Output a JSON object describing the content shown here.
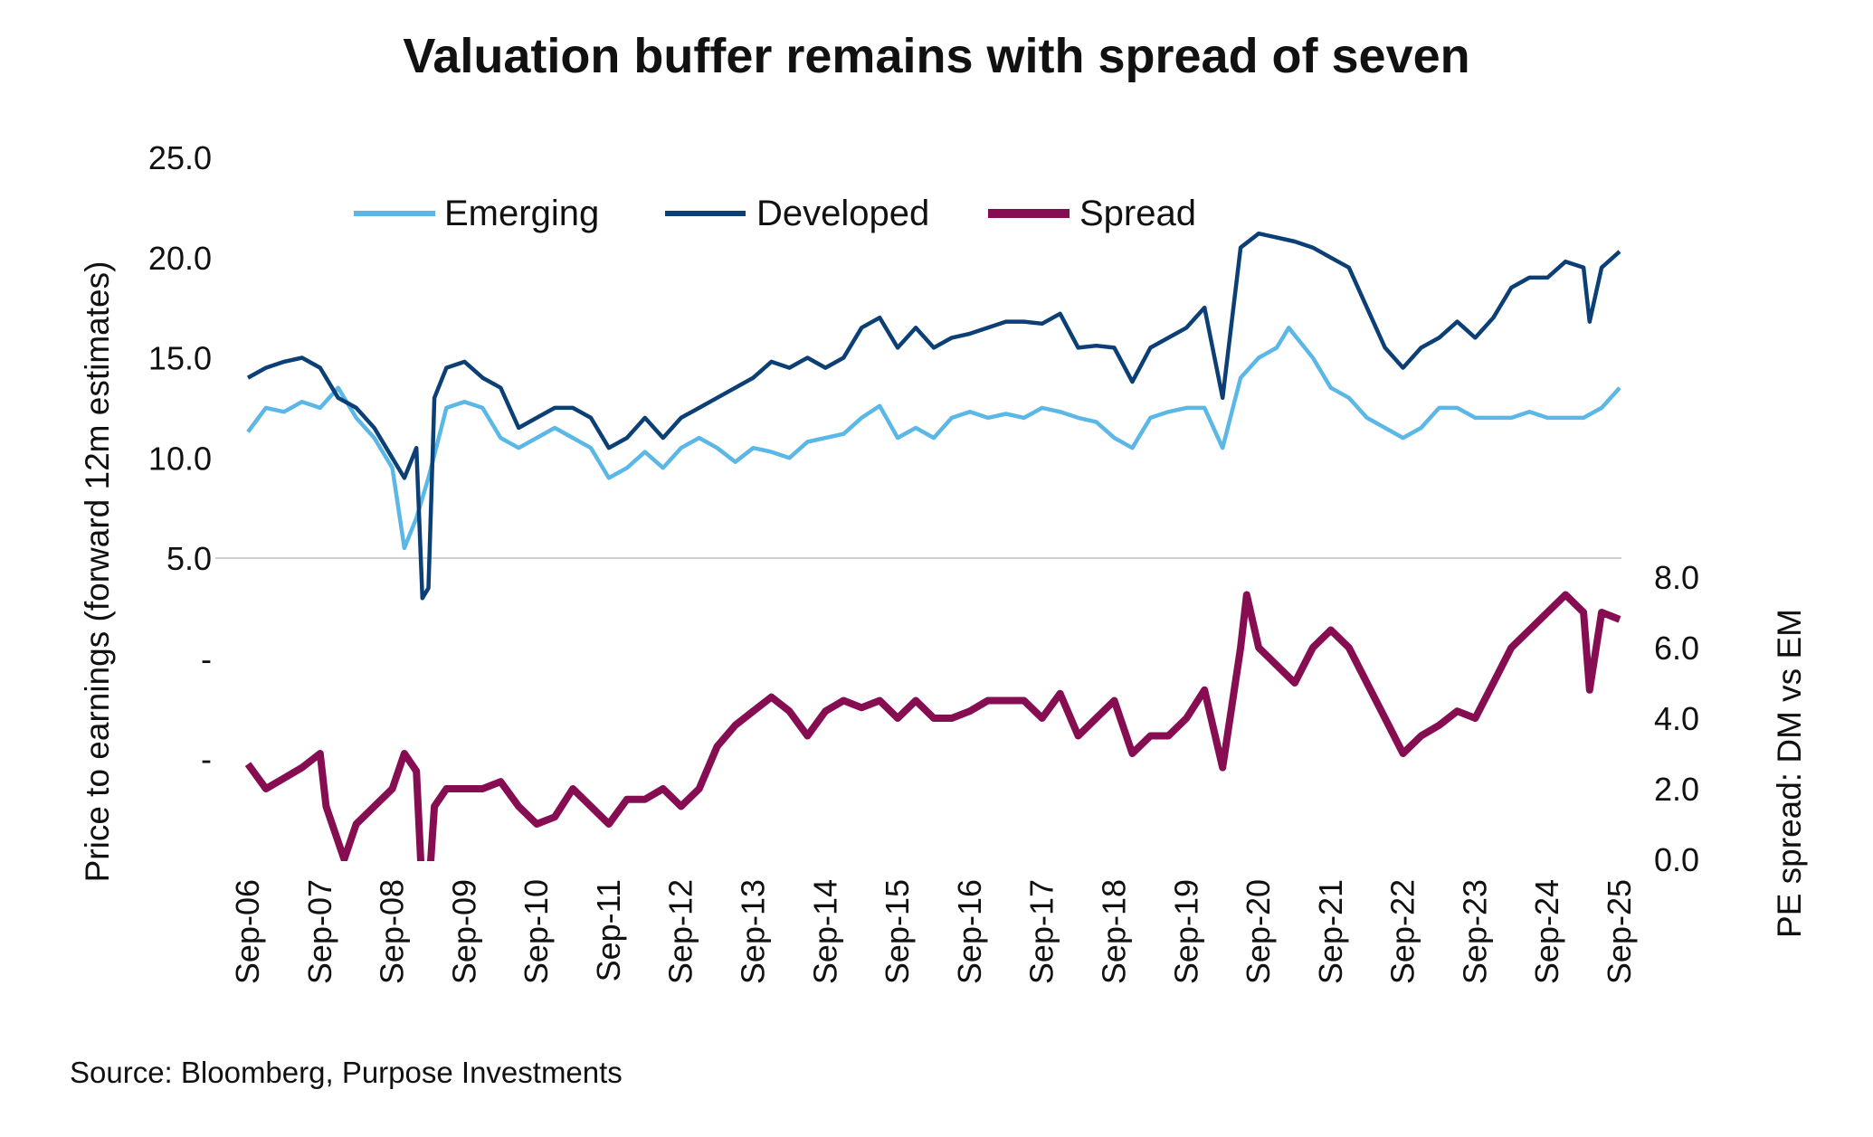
{
  "chart_data": {
    "type": "line",
    "title": "Valuation buffer remains with spread of seven",
    "ylabel": "Price to earnings (forward 12m estimates)",
    "y2label": "PE spread: DM vs EM",
    "source": "Source: Bloomberg, Purpose Investments",
    "legend_position": "top",
    "y_ticks": [
      "25.0",
      "20.0",
      "15.0",
      "10.0",
      "5.0",
      "-",
      "-"
    ],
    "y_tick_values": [
      25,
      20,
      15,
      10,
      5,
      0,
      -5
    ],
    "ylim": [
      -5,
      25
    ],
    "y2_ticks": [
      "8.0",
      "6.0",
      "4.0",
      "2.0",
      "0.0"
    ],
    "y2_tick_values": [
      8,
      6,
      4,
      2,
      0
    ],
    "y2lim": [
      0,
      8
    ],
    "x_ticks": [
      "Sep-06",
      "Sep-07",
      "Sep-08",
      "Sep-09",
      "Sep-10",
      "Sep-11",
      "Sep-12",
      "Sep-13",
      "Sep-14",
      "Sep-15",
      "Sep-16",
      "Sep-17",
      "Sep-18",
      "Sep-19",
      "Sep-20",
      "Sep-21",
      "Sep-22",
      "Sep-23",
      "Sep-24",
      "Sep-25"
    ],
    "gridline_at": 5,
    "series": [
      {
        "name": "Emerging",
        "axis": "left",
        "color": "#5ab7e6",
        "points": [
          [
            "2006-09",
            11.3
          ],
          [
            "2006-12",
            12.5
          ],
          [
            "2007-03",
            12.3
          ],
          [
            "2007-06",
            12.8
          ],
          [
            "2007-09",
            12.5
          ],
          [
            "2007-12",
            13.5
          ],
          [
            "2008-03",
            12.0
          ],
          [
            "2008-06",
            11.0
          ],
          [
            "2008-09",
            9.5
          ],
          [
            "2008-11",
            5.5
          ],
          [
            "2009-01",
            7.0
          ],
          [
            "2009-03",
            9.0
          ],
          [
            "2009-06",
            12.5
          ],
          [
            "2009-09",
            12.8
          ],
          [
            "2009-12",
            12.5
          ],
          [
            "2010-03",
            11.0
          ],
          [
            "2010-06",
            10.5
          ],
          [
            "2010-09",
            11.0
          ],
          [
            "2010-12",
            11.5
          ],
          [
            "2011-03",
            11.0
          ],
          [
            "2011-06",
            10.5
          ],
          [
            "2011-09",
            9.0
          ],
          [
            "2011-12",
            9.5
          ],
          [
            "2012-03",
            10.3
          ],
          [
            "2012-06",
            9.5
          ],
          [
            "2012-09",
            10.5
          ],
          [
            "2012-12",
            11.0
          ],
          [
            "2013-03",
            10.5
          ],
          [
            "2013-06",
            9.8
          ],
          [
            "2013-09",
            10.5
          ],
          [
            "2013-12",
            10.3
          ],
          [
            "2014-03",
            10.0
          ],
          [
            "2014-06",
            10.8
          ],
          [
            "2014-09",
            11.0
          ],
          [
            "2014-12",
            11.2
          ],
          [
            "2015-03",
            12.0
          ],
          [
            "2015-06",
            12.6
          ],
          [
            "2015-09",
            11.0
          ],
          [
            "2015-12",
            11.5
          ],
          [
            "2016-03",
            11.0
          ],
          [
            "2016-06",
            12.0
          ],
          [
            "2016-09",
            12.3
          ],
          [
            "2016-12",
            12.0
          ],
          [
            "2017-03",
            12.2
          ],
          [
            "2017-06",
            12.0
          ],
          [
            "2017-09",
            12.5
          ],
          [
            "2017-12",
            12.3
          ],
          [
            "2018-03",
            12.0
          ],
          [
            "2018-06",
            11.8
          ],
          [
            "2018-09",
            11.0
          ],
          [
            "2018-12",
            10.5
          ],
          [
            "2019-03",
            12.0
          ],
          [
            "2019-06",
            12.3
          ],
          [
            "2019-09",
            12.5
          ],
          [
            "2019-12",
            12.5
          ],
          [
            "2020-03",
            10.5
          ],
          [
            "2020-06",
            14.0
          ],
          [
            "2020-09",
            15.0
          ],
          [
            "2020-12",
            15.5
          ],
          [
            "2021-02",
            16.5
          ],
          [
            "2021-06",
            15.0
          ],
          [
            "2021-09",
            13.5
          ],
          [
            "2021-12",
            13.0
          ],
          [
            "2022-03",
            12.0
          ],
          [
            "2022-06",
            11.5
          ],
          [
            "2022-09",
            11.0
          ],
          [
            "2022-12",
            11.5
          ],
          [
            "2023-03",
            12.5
          ],
          [
            "2023-06",
            12.5
          ],
          [
            "2023-09",
            12.0
          ],
          [
            "2023-12",
            12.0
          ],
          [
            "2024-03",
            12.0
          ],
          [
            "2024-06",
            12.3
          ],
          [
            "2024-09",
            12.0
          ],
          [
            "2024-12",
            12.0
          ],
          [
            "2025-03",
            12.0
          ],
          [
            "2025-06",
            12.5
          ],
          [
            "2025-09",
            13.5
          ]
        ]
      },
      {
        "name": "Developed",
        "axis": "left",
        "color": "#0b3f75",
        "points": [
          [
            "2006-09",
            14.0
          ],
          [
            "2006-12",
            14.5
          ],
          [
            "2007-03",
            14.8
          ],
          [
            "2007-06",
            15.0
          ],
          [
            "2007-09",
            14.5
          ],
          [
            "2007-12",
            13.0
          ],
          [
            "2008-03",
            12.5
          ],
          [
            "2008-06",
            11.5
          ],
          [
            "2008-09",
            10.0
          ],
          [
            "2008-11",
            9.0
          ],
          [
            "2009-01",
            10.5
          ],
          [
            "2009-02",
            3.0
          ],
          [
            "2009-03",
            3.5
          ],
          [
            "2009-04",
            13.0
          ],
          [
            "2009-06",
            14.5
          ],
          [
            "2009-09",
            14.8
          ],
          [
            "2009-12",
            14.0
          ],
          [
            "2010-03",
            13.5
          ],
          [
            "2010-06",
            11.5
          ],
          [
            "2010-09",
            12.0
          ],
          [
            "2010-12",
            12.5
          ],
          [
            "2011-03",
            12.5
          ],
          [
            "2011-06",
            12.0
          ],
          [
            "2011-09",
            10.5
          ],
          [
            "2011-12",
            11.0
          ],
          [
            "2012-03",
            12.0
          ],
          [
            "2012-06",
            11.0
          ],
          [
            "2012-09",
            12.0
          ],
          [
            "2012-12",
            12.5
          ],
          [
            "2013-03",
            13.0
          ],
          [
            "2013-06",
            13.5
          ],
          [
            "2013-09",
            14.0
          ],
          [
            "2013-12",
            14.8
          ],
          [
            "2014-03",
            14.5
          ],
          [
            "2014-06",
            15.0
          ],
          [
            "2014-09",
            14.5
          ],
          [
            "2014-12",
            15.0
          ],
          [
            "2015-03",
            16.5
          ],
          [
            "2015-06",
            17.0
          ],
          [
            "2015-09",
            15.5
          ],
          [
            "2015-12",
            16.5
          ],
          [
            "2016-03",
            15.5
          ],
          [
            "2016-06",
            16.0
          ],
          [
            "2016-09",
            16.2
          ],
          [
            "2016-12",
            16.5
          ],
          [
            "2017-03",
            16.8
          ],
          [
            "2017-06",
            16.8
          ],
          [
            "2017-09",
            16.7
          ],
          [
            "2017-12",
            17.2
          ],
          [
            "2018-03",
            15.5
          ],
          [
            "2018-06",
            15.6
          ],
          [
            "2018-09",
            15.5
          ],
          [
            "2018-12",
            13.8
          ],
          [
            "2019-03",
            15.5
          ],
          [
            "2019-06",
            16.0
          ],
          [
            "2019-09",
            16.5
          ],
          [
            "2019-12",
            17.5
          ],
          [
            "2020-03",
            13.0
          ],
          [
            "2020-06",
            20.5
          ],
          [
            "2020-09",
            21.2
          ],
          [
            "2020-12",
            21.0
          ],
          [
            "2021-03",
            20.8
          ],
          [
            "2021-06",
            20.5
          ],
          [
            "2021-09",
            20.0
          ],
          [
            "2021-12",
            19.5
          ],
          [
            "2022-03",
            17.5
          ],
          [
            "2022-06",
            15.5
          ],
          [
            "2022-09",
            14.5
          ],
          [
            "2022-12",
            15.5
          ],
          [
            "2023-03",
            16.0
          ],
          [
            "2023-06",
            16.8
          ],
          [
            "2023-09",
            16.0
          ],
          [
            "2023-12",
            17.0
          ],
          [
            "2024-03",
            18.5
          ],
          [
            "2024-06",
            19.0
          ],
          [
            "2024-09",
            19.0
          ],
          [
            "2024-12",
            19.8
          ],
          [
            "2025-03",
            19.5
          ],
          [
            "2025-04",
            16.8
          ],
          [
            "2025-06",
            19.5
          ],
          [
            "2025-09",
            20.3
          ]
        ]
      },
      {
        "name": "Spread",
        "axis": "right",
        "color": "#870d52",
        "points": [
          [
            "2006-09",
            2.7
          ],
          [
            "2006-12",
            2.0
          ],
          [
            "2007-03",
            2.3
          ],
          [
            "2007-06",
            2.6
          ],
          [
            "2007-09",
            3.0
          ],
          [
            "2007-10",
            1.5
          ],
          [
            "2007-12",
            0.5
          ],
          [
            "2008-01",
            0.0
          ],
          [
            "2008-03",
            1.0
          ],
          [
            "2008-06",
            1.5
          ],
          [
            "2008-09",
            2.0
          ],
          [
            "2008-11",
            3.0
          ],
          [
            "2009-01",
            2.5
          ],
          [
            "2009-02",
            -1.0
          ],
          [
            "2009-03",
            -1.0
          ],
          [
            "2009-04",
            1.5
          ],
          [
            "2009-06",
            2.0
          ],
          [
            "2009-09",
            2.0
          ],
          [
            "2009-12",
            2.0
          ],
          [
            "2010-03",
            2.2
          ],
          [
            "2010-06",
            1.5
          ],
          [
            "2010-09",
            1.0
          ],
          [
            "2010-12",
            1.2
          ],
          [
            "2011-03",
            2.0
          ],
          [
            "2011-06",
            1.5
          ],
          [
            "2011-09",
            1.0
          ],
          [
            "2011-12",
            1.7
          ],
          [
            "2012-03",
            1.7
          ],
          [
            "2012-06",
            2.0
          ],
          [
            "2012-09",
            1.5
          ],
          [
            "2012-12",
            2.0
          ],
          [
            "2013-03",
            3.2
          ],
          [
            "2013-06",
            3.8
          ],
          [
            "2013-09",
            4.2
          ],
          [
            "2013-12",
            4.6
          ],
          [
            "2014-03",
            4.2
          ],
          [
            "2014-06",
            3.5
          ],
          [
            "2014-09",
            4.2
          ],
          [
            "2014-12",
            4.5
          ],
          [
            "2015-03",
            4.3
          ],
          [
            "2015-06",
            4.5
          ],
          [
            "2015-09",
            4.0
          ],
          [
            "2015-12",
            4.5
          ],
          [
            "2016-03",
            4.0
          ],
          [
            "2016-06",
            4.0
          ],
          [
            "2016-09",
            4.2
          ],
          [
            "2016-12",
            4.5
          ],
          [
            "2017-03",
            4.5
          ],
          [
            "2017-06",
            4.5
          ],
          [
            "2017-09",
            4.0
          ],
          [
            "2017-12",
            4.7
          ],
          [
            "2018-03",
            3.5
          ],
          [
            "2018-06",
            4.0
          ],
          [
            "2018-09",
            4.5
          ],
          [
            "2018-12",
            3.0
          ],
          [
            "2019-03",
            3.5
          ],
          [
            "2019-06",
            3.5
          ],
          [
            "2019-09",
            4.0
          ],
          [
            "2019-12",
            4.8
          ],
          [
            "2020-03",
            2.6
          ],
          [
            "2020-06",
            6.0
          ],
          [
            "2020-07",
            7.5
          ],
          [
            "2020-09",
            6.0
          ],
          [
            "2020-12",
            5.5
          ],
          [
            "2021-03",
            5.0
          ],
          [
            "2021-06",
            6.0
          ],
          [
            "2021-09",
            6.5
          ],
          [
            "2021-12",
            6.0
          ],
          [
            "2022-03",
            5.0
          ],
          [
            "2022-06",
            4.0
          ],
          [
            "2022-09",
            3.0
          ],
          [
            "2022-12",
            3.5
          ],
          [
            "2023-03",
            3.8
          ],
          [
            "2023-06",
            4.2
          ],
          [
            "2023-09",
            4.0
          ],
          [
            "2023-12",
            5.0
          ],
          [
            "2024-03",
            6.0
          ],
          [
            "2024-06",
            6.5
          ],
          [
            "2024-09",
            7.0
          ],
          [
            "2024-12",
            7.5
          ],
          [
            "2025-03",
            7.0
          ],
          [
            "2025-04",
            4.8
          ],
          [
            "2025-06",
            7.0
          ],
          [
            "2025-09",
            6.8
          ]
        ]
      }
    ]
  }
}
